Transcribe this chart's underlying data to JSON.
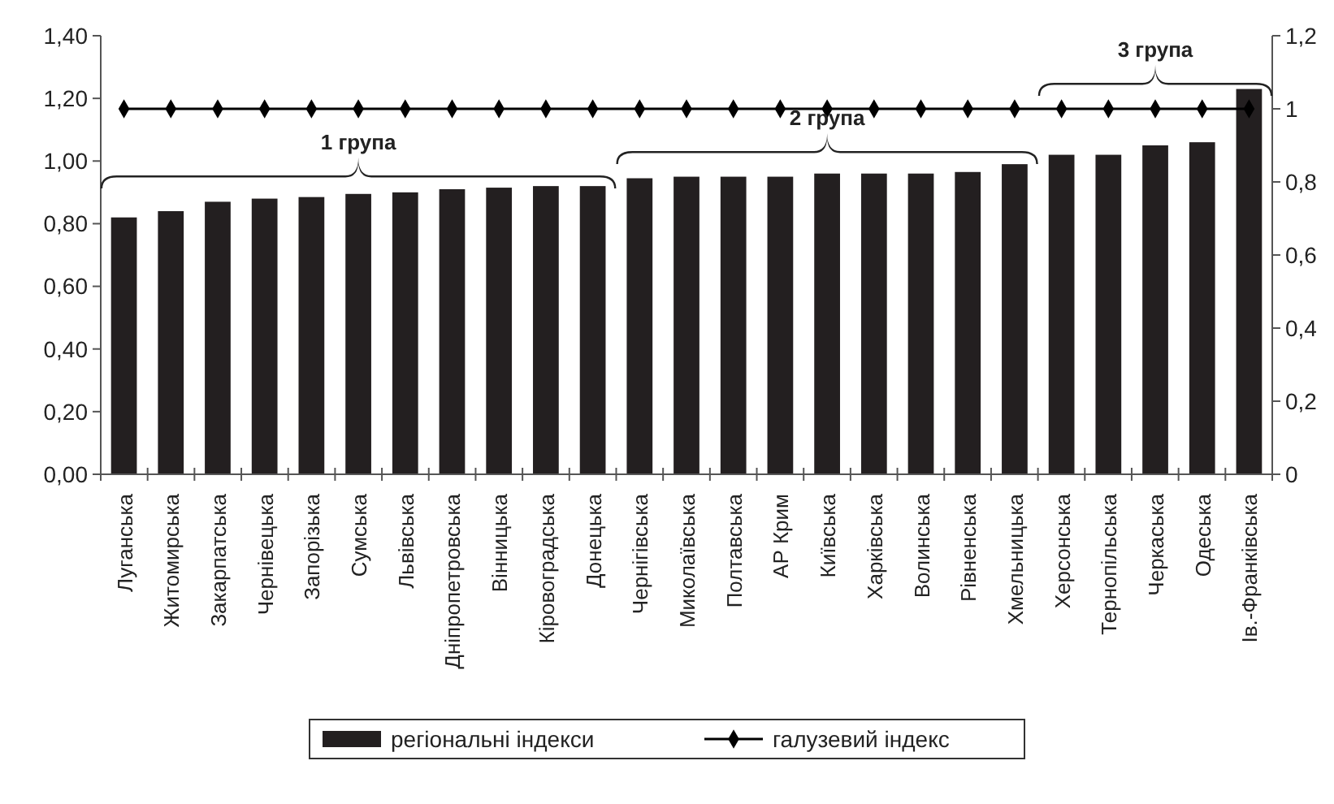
{
  "chart_data": {
    "type": "bar",
    "categories": [
      "Луганська",
      "Житомирська",
      "Закарпатська",
      "Чернівецька",
      "Запорізька",
      "Сумська",
      "Львівська",
      "Дніпропетровська",
      "Вінницька",
      "Кіровоградська",
      "Донецька",
      "Чернігівська",
      "Миколаївська",
      "Полтавська",
      "АР Крим",
      "Київська",
      "Харківська",
      "Волинська",
      "Рівненська",
      "Хмельницька",
      "Херсонська",
      "Тернопільська",
      "Черкаська",
      "Одеська",
      "Ів.-Франківська"
    ],
    "series": [
      {
        "name": "регіональні індекси",
        "color": "#231f20",
        "values": [
          0.82,
          0.84,
          0.87,
          0.88,
          0.885,
          0.895,
          0.9,
          0.91,
          0.915,
          0.92,
          0.92,
          0.945,
          0.95,
          0.95,
          0.95,
          0.96,
          0.96,
          0.96,
          0.965,
          0.99,
          1.02,
          1.02,
          1.05,
          1.06,
          1.23
        ]
      },
      {
        "name": "галузевий індекс",
        "type": "line",
        "axis": "y2",
        "color": "#000000",
        "marker": "diamond",
        "values": [
          1,
          1,
          1,
          1,
          1,
          1,
          1,
          1,
          1,
          1,
          1,
          1,
          1,
          1,
          1,
          1,
          1,
          1,
          1,
          1,
          1,
          1,
          1,
          1,
          1
        ]
      }
    ],
    "ylim": [
      0,
      1.4
    ],
    "yticks": [
      {
        "value": 0,
        "label": "0,00"
      },
      {
        "value": 0.2,
        "label": "0,20"
      },
      {
        "value": 0.4,
        "label": "0,40"
      },
      {
        "value": 0.6,
        "label": "0,60"
      },
      {
        "value": 0.8,
        "label": "0,80"
      },
      {
        "value": 1,
        "label": "1,00"
      },
      {
        "value": 1.2,
        "label": "1,20"
      },
      {
        "value": 1.4,
        "label": "1,40"
      }
    ],
    "y2lim": [
      0,
      1.2
    ],
    "y2ticks": [
      0,
      {
        "value": 0.2,
        "label": "0,2"
      },
      {
        "value": 0.4,
        "label": "0,4"
      },
      {
        "value": 0.6,
        "label": "0,6"
      },
      {
        "value": 0.8,
        "label": "0,8"
      },
      1,
      {
        "value": 1.2,
        "label": "1,2"
      }
    ],
    "annotations": [
      "1 група",
      "2 група",
      "3 група"
    ],
    "legend": "bottom",
    "grid": false
  }
}
